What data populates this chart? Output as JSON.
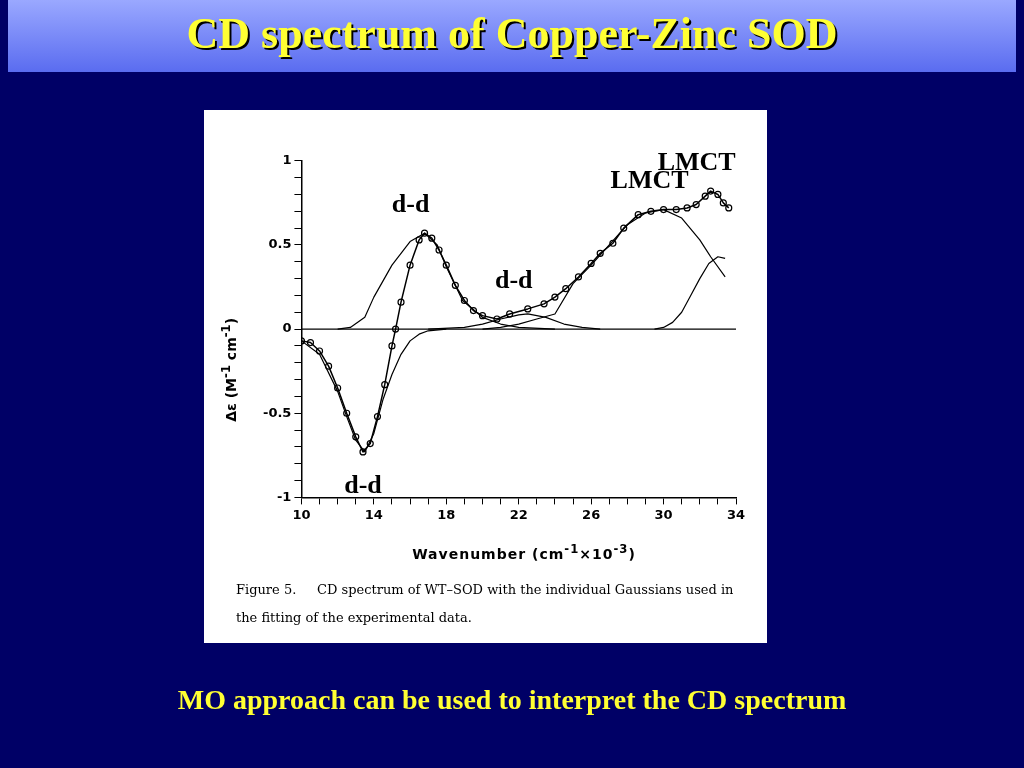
{
  "chart_data": {
    "type": "line",
    "title": "CD spectrum of Copper-Zinc SOD",
    "subtitle": "MO approach can be used to interpret the CD spectrum",
    "xlabel": "Wavenumber (cm$^{-1}$×10$^{-3}$)",
    "ylabel": "Δε (M$^{-1}$ cm$^{-1}$)",
    "xlim": [
      10,
      34
    ],
    "ylim": [
      -1,
      1
    ],
    "xticks": [
      10,
      {
        "value": 11,
        "label": null
      },
      {
        "value": 12,
        "label": null
      },
      {
        "value": 13,
        "label": null
      },
      14,
      {
        "value": 15,
        "label": null
      },
      {
        "value": 16,
        "label": null
      },
      {
        "value": 17,
        "label": null
      },
      18,
      {
        "value": 19,
        "label": null
      },
      {
        "value": 20,
        "label": null
      },
      {
        "value": 21,
        "label": null
      },
      22,
      {
        "value": 23,
        "label": null
      },
      {
        "value": 24,
        "label": null
      },
      {
        "value": 25,
        "label": null
      },
      26,
      {
        "value": 27,
        "label": null
      },
      {
        "value": 28,
        "label": null
      },
      {
        "value": 29,
        "label": null
      },
      30,
      {
        "value": 31,
        "label": null
      },
      {
        "value": 32,
        "label": null
      },
      {
        "value": 33,
        "label": null
      },
      34
    ],
    "yticks": [
      -1,
      {
        "value": -0.9,
        "label": null
      },
      {
        "value": -0.8,
        "label": null
      },
      {
        "value": -0.7,
        "label": null
      },
      {
        "value": -0.6,
        "label": null
      },
      -0.5,
      {
        "value": -0.4,
        "label": null
      },
      {
        "value": -0.3,
        "label": null
      },
      {
        "value": -0.2,
        "label": null
      },
      {
        "value": -0.1,
        "label": null
      },
      0,
      {
        "value": 0.1,
        "label": null
      },
      {
        "value": 0.2,
        "label": null
      },
      {
        "value": 0.3,
        "label": null
      },
      {
        "value": 0.4,
        "label": null
      },
      0.5,
      {
        "value": 0.6,
        "label": null
      },
      {
        "value": 0.7,
        "label": null
      },
      {
        "value": 0.8,
        "label": null
      },
      {
        "value": 0.9,
        "label": null
      },
      1
    ],
    "grid": false,
    "legend": false,
    "line_style": "solid",
    "ref_lines": [
      {
        "axis": "y",
        "value": 0,
        "color": "#000000"
      }
    ],
    "series": [
      {
        "color": "#000000",
        "marker": "circle",
        "x": [
          10,
          10.5,
          11,
          11.5,
          12,
          12.5,
          13,
          13.4,
          13.8,
          14.2,
          14.6,
          15,
          15.2,
          15.5,
          16,
          16.5,
          16.8,
          17.2,
          17.6,
          18,
          18.5,
          19,
          19.5,
          20,
          20.8,
          21.5,
          22.5,
          23.4,
          24,
          24.6,
          25.3,
          26,
          26.5,
          27.2,
          27.8,
          28.6,
          29.3,
          30,
          30.7,
          31.3,
          31.8,
          32.3,
          32.6,
          33,
          33.3,
          33.6
        ],
        "values": [
          -0.07,
          -0.08,
          -0.13,
          -0.22,
          -0.35,
          -0.5,
          -0.64,
          -0.73,
          -0.68,
          -0.52,
          -0.33,
          -0.1,
          0,
          0.16,
          0.38,
          0.53,
          0.57,
          0.54,
          0.47,
          0.38,
          0.26,
          0.17,
          0.11,
          0.08,
          0.06,
          0.09,
          0.12,
          0.15,
          0.19,
          0.24,
          0.31,
          0.39,
          0.45,
          0.51,
          0.6,
          0.68,
          0.7,
          0.71,
          0.71,
          0.72,
          0.74,
          0.79,
          0.82,
          0.8,
          0.75,
          0.72
        ]
      },
      {
        "color": "#000000",
        "marker": "none",
        "x": [
          10,
          11,
          12,
          12.5,
          13,
          13.5,
          14,
          14.5,
          15,
          15.5,
          16,
          16.5,
          17,
          18
        ],
        "values": [
          -0.07,
          -0.15,
          -0.37,
          -0.52,
          -0.66,
          -0.73,
          -0.62,
          -0.42,
          -0.27,
          -0.15,
          -0.07,
          -0.03,
          -0.01,
          0
        ]
      },
      {
        "color": "#000000",
        "marker": "none",
        "x": [
          12,
          12.7,
          13.5,
          14,
          15,
          16,
          16.8,
          17.5,
          18,
          18.9,
          20,
          21,
          22,
          24
        ],
        "values": [
          0,
          0.01,
          0.07,
          0.19,
          0.38,
          0.52,
          0.57,
          0.5,
          0.37,
          0.17,
          0.07,
          0.03,
          0.01,
          0
        ]
      },
      {
        "color": "#000000",
        "marker": "none",
        "x": [
          17,
          19,
          20,
          21,
          22,
          22.5,
          23.5,
          24.5,
          25.5,
          26.5
        ],
        "values": [
          0,
          0.01,
          0.03,
          0.06,
          0.085,
          0.09,
          0.07,
          0.03,
          0.01,
          0
        ]
      },
      {
        "color": "#000000",
        "marker": "none",
        "x": [
          20,
          21,
          22,
          23,
          24,
          25,
          26,
          27,
          28,
          29,
          30,
          31,
          32,
          32.6,
          33.4
        ],
        "values": [
          0,
          0.01,
          0.03,
          0.06,
          0.09,
          0.27,
          0.38,
          0.5,
          0.62,
          0.69,
          0.71,
          0.66,
          0.53,
          0.43,
          0.31
        ]
      },
      {
        "color": "#000000",
        "marker": "none",
        "x": [
          29.5,
          30,
          30.5,
          31,
          31.5,
          32,
          32.5,
          33,
          33.4
        ],
        "values": [
          0,
          0.01,
          0.04,
          0.1,
          0.2,
          0.3,
          0.39,
          0.43,
          0.42
        ]
      }
    ],
    "annotations": [
      {
        "text": "d-d",
        "x": 13.4,
        "y": -0.73
      },
      {
        "text": "d-d",
        "x": 16.8,
        "y": 0.57
      },
      {
        "text": "d-d",
        "x": 22.5,
        "y": 0.12
      },
      {
        "text": "LMCT",
        "x": 30,
        "y": 0.71
      },
      {
        "text": "LMCT",
        "x": 32.6,
        "y": 0.82
      },
      "Figure 5.     CD spectrum of WT–SOD with the individual Gaussians used in the fitting of the experimental data."
    ]
  }
}
